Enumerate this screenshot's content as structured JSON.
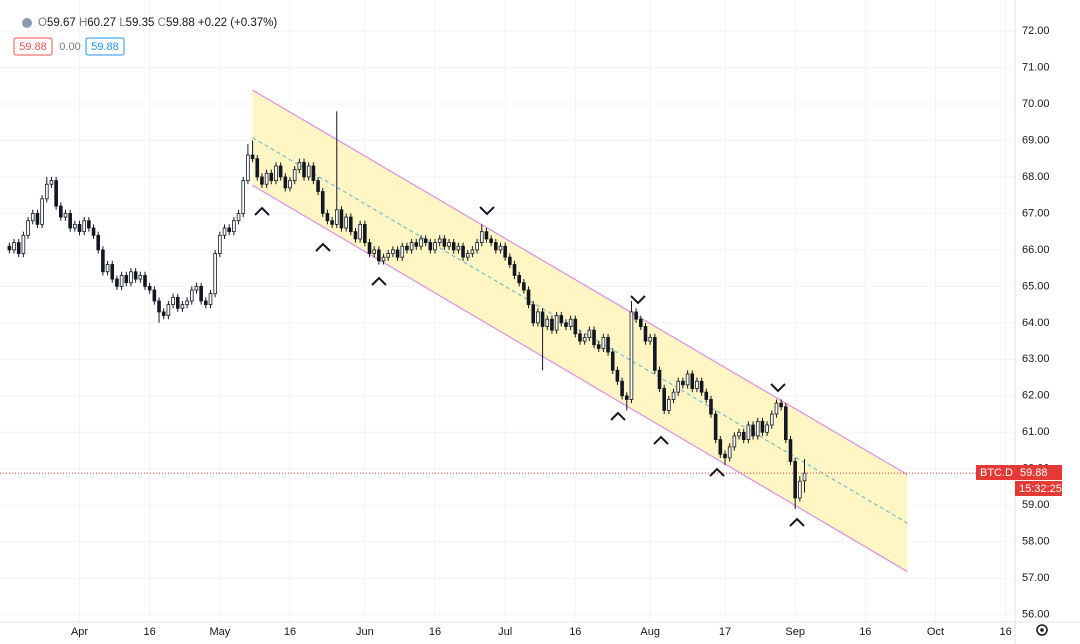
{
  "header": {
    "fields": [
      {
        "label": "O",
        "value": 59.67
      },
      {
        "label": "H",
        "value": 60.27
      },
      {
        "label": "L",
        "value": 59.35
      },
      {
        "label": "C",
        "value": 59.88
      }
    ],
    "change": "+0.22 (+0.37%)",
    "bid": "59.88",
    "spread": "0.00",
    "ask": "59.88"
  },
  "price_tag": {
    "symbol": "BTC.D",
    "price": "59.88",
    "countdown": "15:32:25"
  },
  "chart_data": {
    "type": "candlestick",
    "x": [
      "Mar 17",
      "Mar 18",
      "Mar 19",
      "Mar 20",
      "Mar 21",
      "Mar 22",
      "Mar 23",
      "Mar 24",
      "Mar 25",
      "Mar 26",
      "Mar 27",
      "Mar 28",
      "Mar 29",
      "Mar 30",
      "Mar 31",
      "Apr 1",
      "Apr 2",
      "Apr 3",
      "Apr 4",
      "Apr 5",
      "Apr 6",
      "Apr 7",
      "Apr 8",
      "Apr 9",
      "Apr 10",
      "Apr 11",
      "Apr 12",
      "Apr 13",
      "Apr 14",
      "Apr 15",
      "Apr 16",
      "Apr 17",
      "Apr 18",
      "Apr 19",
      "Apr 20",
      "Apr 21",
      "Apr 22",
      "Apr 23",
      "Apr 24",
      "Apr 25",
      "Apr 26",
      "Apr 27",
      "Apr 28",
      "Apr 29",
      "Apr 30",
      "May 1",
      "May 2",
      "May 3",
      "May 4",
      "May 5",
      "May 6",
      "May 7",
      "May 8",
      "May 9",
      "May 10",
      "May 11",
      "May 12",
      "May 13",
      "May 14",
      "May 15",
      "May 16",
      "May 17",
      "May 18",
      "May 19",
      "May 20",
      "May 21",
      "May 22",
      "May 23",
      "May 24",
      "May 25",
      "May 26",
      "May 27",
      "May 28",
      "May 29",
      "May 30",
      "May 31",
      "Jun 1",
      "Jun 2",
      "Jun 3",
      "Jun 4",
      "Jun 5",
      "Jun 6",
      "Jun 7",
      "Jun 8",
      "Jun 9",
      "Jun 10",
      "Jun 11",
      "Jun 12",
      "Jun 13",
      "Jun 14",
      "Jun 15",
      "Jun 16",
      "Jun 17",
      "Jun 18",
      "Jun 19",
      "Jun 20",
      "Jun 21",
      "Jun 22",
      "Jun 23",
      "Jun 24",
      "Jun 25",
      "Jun 26",
      "Jun 27",
      "Jun 28",
      "Jun 29",
      "Jun 30",
      "Jul 1",
      "Jul 2",
      "Jul 3",
      "Jul 4",
      "Jul 5",
      "Jul 6",
      "Jul 7",
      "Jul 8",
      "Jul 9",
      "Jul 10",
      "Jul 11",
      "Jul 12",
      "Jul 13",
      "Jul 14",
      "Jul 15",
      "Jul 16",
      "Jul 17",
      "Jul 18",
      "Jul 19",
      "Jul 20",
      "Jul 21",
      "Jul 22",
      "Jul 23",
      "Jul 24",
      "Jul 25",
      "Jul 26",
      "Jul 27",
      "Jul 28",
      "Jul 29",
      "Jul 30",
      "Jul 31",
      "Aug 1",
      "Aug 2",
      "Aug 3",
      "Aug 4",
      "Aug 5",
      "Aug 6",
      "Aug 7",
      "Aug 8",
      "Aug 9",
      "Aug 10",
      "Aug 11",
      "Aug 12",
      "Aug 13",
      "Aug 14",
      "Aug 15",
      "Aug 16",
      "Aug 17",
      "Aug 18",
      "Aug 19",
      "Aug 20",
      "Aug 21",
      "Aug 22",
      "Aug 23",
      "Aug 24",
      "Aug 25",
      "Aug 26",
      "Aug 27",
      "Aug 28",
      "Aug 29",
      "Aug 30",
      "Aug 31",
      "Sep 1",
      "Sep 2",
      "Sep 3"
    ],
    "open": [
      66.1,
      66.0,
      66.2,
      65.9,
      66.4,
      66.8,
      67.0,
      66.7,
      67.4,
      67.8,
      67.9,
      67.2,
      66.9,
      67.0,
      66.6,
      66.7,
      66.5,
      66.8,
      66.6,
      66.4,
      66.0,
      65.4,
      65.6,
      65.2,
      65.0,
      65.3,
      65.1,
      65.4,
      65.2,
      65.3,
      65.0,
      64.9,
      64.6,
      64.3,
      64.2,
      64.5,
      64.7,
      64.4,
      64.5,
      64.6,
      64.9,
      65.0,
      64.6,
      64.5,
      64.8,
      65.9,
      66.4,
      66.6,
      66.5,
      66.8,
      67.0,
      67.9,
      68.6,
      68.5,
      68.0,
      67.8,
      68.1,
      67.9,
      68.3,
      68.0,
      67.7,
      67.9,
      68.2,
      68.4,
      68.0,
      68.3,
      67.9,
      67.6,
      67.0,
      66.8,
      66.7,
      67.1,
      66.6,
      66.9,
      66.5,
      66.3,
      66.7,
      66.2,
      65.9,
      66.0,
      65.7,
      65.8,
      65.9,
      66.0,
      65.8,
      66.1,
      66.0,
      66.2,
      66.1,
      66.3,
      66.2,
      66.0,
      66.2,
      66.3,
      66.1,
      66.2,
      66.0,
      66.1,
      65.8,
      65.9,
      66.0,
      66.2,
      66.5,
      66.3,
      66.2,
      66.0,
      66.1,
      65.8,
      65.6,
      65.3,
      65.1,
      64.9,
      64.5,
      64.0,
      64.3,
      63.9,
      64.1,
      63.8,
      64.2,
      64.0,
      63.9,
      64.1,
      63.7,
      63.5,
      63.6,
      63.8,
      63.4,
      63.3,
      63.6,
      63.2,
      62.7,
      62.4,
      62.0,
      61.9,
      64.3,
      64.1,
      63.9,
      63.5,
      63.6,
      62.7,
      62.2,
      61.6,
      61.9,
      62.1,
      62.4,
      62.3,
      62.6,
      62.2,
      62.4,
      62.1,
      61.9,
      61.5,
      60.8,
      60.4,
      60.3,
      60.6,
      60.9,
      61.0,
      60.8,
      61.2,
      60.9,
      61.3,
      61.0,
      61.2,
      61.5,
      61.8,
      61.7,
      60.8,
      60.2,
      59.2,
      59.67
    ],
    "high": [
      66.2,
      66.3,
      66.3,
      66.5,
      66.9,
      67.1,
      67.1,
      67.5,
      68.0,
      68.0,
      68.0,
      67.3,
      67.1,
      67.1,
      66.8,
      66.8,
      66.9,
      66.9,
      66.7,
      66.5,
      66.1,
      65.7,
      65.7,
      65.3,
      65.4,
      65.4,
      65.5,
      65.5,
      65.4,
      65.4,
      65.1,
      65.0,
      64.7,
      64.4,
      64.6,
      64.8,
      64.8,
      64.6,
      64.7,
      65.0,
      65.1,
      65.1,
      64.7,
      64.9,
      66.0,
      66.5,
      66.7,
      66.7,
      66.9,
      67.1,
      68.0,
      68.9,
      69.0,
      68.6,
      68.1,
      68.2,
      68.2,
      68.4,
      68.4,
      68.1,
      68.0,
      68.3,
      68.5,
      68.5,
      68.4,
      68.4,
      68.0,
      67.7,
      67.1,
      66.9,
      69.8,
      67.2,
      67.0,
      67.0,
      66.6,
      66.8,
      66.8,
      66.3,
      66.1,
      66.1,
      65.9,
      66.0,
      66.1,
      66.1,
      66.2,
      66.2,
      66.3,
      66.3,
      66.4,
      66.4,
      66.3,
      66.3,
      66.4,
      66.4,
      66.3,
      66.3,
      66.2,
      66.2,
      66.0,
      66.1,
      66.3,
      66.7,
      66.6,
      66.4,
      66.3,
      66.2,
      66.2,
      65.9,
      65.7,
      65.4,
      65.2,
      65.0,
      64.6,
      64.4,
      64.4,
      64.2,
      64.2,
      64.3,
      64.3,
      64.1,
      64.2,
      64.2,
      63.8,
      63.7,
      63.9,
      63.9,
      63.5,
      63.7,
      63.7,
      63.3,
      62.8,
      62.5,
      62.1,
      64.6,
      64.4,
      64.2,
      64.0,
      63.7,
      63.7,
      62.8,
      62.3,
      62.0,
      62.2,
      62.5,
      62.5,
      62.7,
      62.7,
      62.5,
      62.5,
      62.2,
      62.0,
      61.6,
      60.9,
      60.5,
      60.7,
      61.0,
      61.1,
      61.1,
      61.3,
      61.3,
      61.4,
      61.4,
      61.3,
      61.6,
      61.9,
      61.9,
      61.8,
      60.9,
      60.3,
      59.8,
      60.27
    ],
    "low": [
      65.9,
      65.9,
      65.8,
      65.8,
      66.3,
      66.7,
      66.6,
      66.6,
      67.3,
      67.7,
      67.1,
      66.8,
      66.8,
      66.5,
      66.5,
      66.4,
      66.4,
      66.5,
      66.3,
      65.9,
      65.3,
      65.3,
      65.1,
      64.9,
      64.9,
      65.0,
      65.0,
      65.1,
      65.1,
      64.9,
      64.8,
      64.5,
      64.0,
      64.1,
      64.1,
      64.4,
      64.3,
      64.3,
      64.4,
      64.5,
      64.8,
      64.5,
      64.4,
      64.4,
      64.7,
      65.8,
      66.3,
      66.4,
      66.4,
      66.7,
      66.9,
      67.8,
      68.4,
      67.9,
      67.7,
      67.7,
      67.8,
      67.8,
      67.9,
      67.6,
      67.6,
      67.8,
      68.1,
      67.9,
      67.9,
      67.8,
      67.5,
      66.9,
      66.7,
      66.6,
      66.6,
      66.5,
      66.5,
      66.4,
      66.2,
      66.2,
      66.1,
      65.8,
      65.8,
      65.6,
      65.6,
      65.7,
      65.8,
      65.7,
      65.7,
      65.9,
      65.9,
      66.0,
      66.0,
      66.1,
      65.9,
      65.9,
      66.1,
      66.0,
      66.0,
      65.9,
      65.9,
      65.7,
      65.7,
      65.8,
      65.9,
      66.1,
      66.2,
      66.1,
      65.9,
      65.9,
      65.7,
      65.5,
      65.2,
      65.0,
      64.8,
      64.4,
      63.9,
      63.9,
      62.7,
      63.8,
      63.7,
      63.7,
      63.9,
      63.8,
      63.8,
      63.6,
      63.4,
      63.4,
      63.5,
      63.3,
      63.2,
      63.2,
      63.1,
      62.6,
      62.3,
      61.9,
      61.6,
      61.8,
      64.0,
      63.8,
      63.4,
      63.4,
      62.6,
      62.1,
      61.5,
      61.5,
      61.8,
      62.0,
      62.2,
      62.2,
      62.1,
      62.1,
      62.0,
      61.8,
      61.4,
      60.7,
      60.3,
      60.1,
      60.2,
      60.5,
      60.8,
      60.7,
      60.7,
      60.8,
      60.8,
      60.9,
      60.9,
      61.1,
      61.4,
      61.6,
      60.7,
      60.1,
      58.9,
      59.1,
      59.35
    ],
    "close": [
      66.0,
      66.2,
      65.9,
      66.4,
      66.8,
      67.0,
      66.7,
      67.4,
      67.8,
      67.9,
      67.2,
      66.9,
      67.0,
      66.6,
      66.7,
      66.5,
      66.8,
      66.6,
      66.4,
      66.0,
      65.4,
      65.6,
      65.2,
      65.0,
      65.3,
      65.1,
      65.4,
      65.2,
      65.3,
      65.0,
      64.9,
      64.6,
      64.3,
      64.2,
      64.5,
      64.7,
      64.4,
      64.5,
      64.6,
      64.9,
      65.0,
      64.6,
      64.5,
      64.8,
      65.9,
      66.4,
      66.6,
      66.5,
      66.8,
      67.0,
      67.9,
      68.6,
      68.5,
      68.0,
      67.8,
      68.1,
      67.9,
      68.3,
      68.0,
      67.7,
      67.9,
      68.2,
      68.4,
      68.0,
      68.3,
      67.9,
      67.6,
      67.0,
      66.8,
      66.7,
      67.1,
      66.6,
      66.9,
      66.5,
      66.3,
      66.7,
      66.2,
      65.9,
      66.0,
      65.7,
      65.8,
      65.9,
      66.0,
      65.8,
      66.1,
      66.0,
      66.2,
      66.1,
      66.3,
      66.2,
      66.0,
      66.2,
      66.3,
      66.1,
      66.2,
      66.0,
      66.1,
      65.8,
      65.9,
      66.0,
      66.2,
      66.5,
      66.3,
      66.2,
      66.0,
      66.1,
      65.8,
      65.6,
      65.3,
      65.1,
      64.9,
      64.5,
      64.0,
      64.3,
      63.9,
      64.1,
      63.8,
      64.2,
      64.0,
      63.9,
      64.1,
      63.7,
      63.5,
      63.6,
      63.8,
      63.4,
      63.3,
      63.6,
      63.2,
      62.7,
      62.4,
      62.0,
      61.9,
      64.3,
      64.1,
      63.9,
      63.5,
      63.6,
      62.7,
      62.2,
      61.6,
      61.9,
      62.1,
      62.4,
      62.3,
      62.6,
      62.2,
      62.4,
      62.1,
      61.9,
      61.5,
      60.8,
      60.4,
      60.3,
      60.6,
      60.9,
      61.0,
      60.8,
      61.2,
      60.9,
      61.3,
      61.0,
      61.2,
      61.5,
      61.8,
      61.7,
      60.8,
      60.2,
      59.2,
      59.66,
      59.88
    ],
    "up_color": "#ffffff",
    "down_color": "#131722",
    "border_color": "#131722",
    "channel": {
      "x": [
        "May 8",
        "Sep 25"
      ],
      "upper": [
        70.38,
        59.84
      ],
      "lower": [
        67.77,
        57.18
      ],
      "fill": "#fff6c4",
      "line_color": "#e08ce8",
      "mid_color": "#5fb3d3"
    },
    "last_price_color": "#e53935",
    "xlim": [
      "Mar 15",
      "Oct 18"
    ],
    "xticks": [
      {
        "value": "Apr 1",
        "label": "Apr"
      },
      {
        "value": "Apr 16",
        "label": "16"
      },
      {
        "value": "May 1",
        "label": "May"
      },
      {
        "value": "May 16",
        "label": "16"
      },
      {
        "value": "Jun 1",
        "label": "Jun"
      },
      {
        "value": "Jun 16",
        "label": "16"
      },
      {
        "value": "Jul 1",
        "label": "Jul"
      },
      {
        "value": "Jul 16",
        "label": "16"
      },
      {
        "value": "Aug 1",
        "label": "Aug"
      },
      {
        "value": "Aug 17",
        "label": "17"
      },
      {
        "value": "Sep 1",
        "label": "Sep"
      },
      {
        "value": "Sep 16",
        "label": "16"
      },
      {
        "value": "Oct 1",
        "label": "Oct"
      },
      {
        "value": "Oct 16",
        "label": "16"
      }
    ],
    "ylim": [
      55.8,
      72.85
    ],
    "yticks": [
      {
        "value": 56,
        "label": "56.00"
      },
      {
        "value": 57,
        "label": "57.00"
      },
      {
        "value": 58,
        "label": "58.00"
      },
      {
        "value": 59,
        "label": "59.00"
      },
      {
        "value": 60,
        "label": "60.00"
      },
      {
        "value": 61,
        "label": "61.00"
      },
      {
        "value": 62,
        "label": "62.00"
      },
      {
        "value": 63,
        "label": "63.00"
      },
      {
        "value": 64,
        "label": "64.00"
      },
      {
        "value": 65,
        "label": "65.00"
      },
      {
        "value": 66,
        "label": "66.00"
      },
      {
        "value": 67,
        "label": "67.00"
      },
      {
        "value": 68,
        "label": "68.00"
      },
      {
        "value": 69,
        "label": "69.00"
      },
      {
        "value": 70,
        "label": "70.00"
      },
      {
        "value": 71,
        "label": "71.00"
      },
      {
        "value": 72,
        "label": "72.00"
      }
    ],
    "grid": true
  }
}
